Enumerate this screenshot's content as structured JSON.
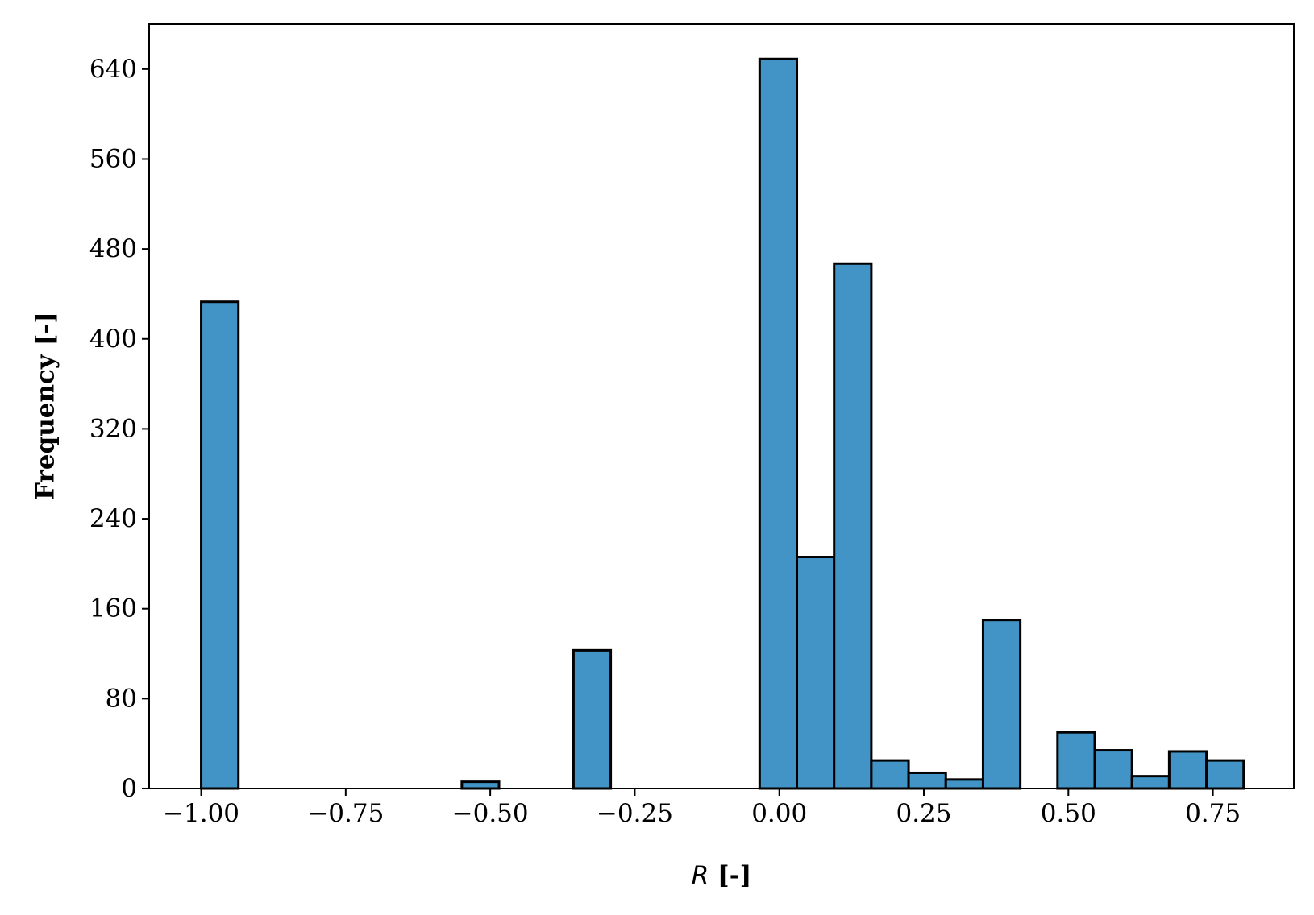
{
  "chart_data": {
    "type": "bar",
    "title": "",
    "xlabel_var": "R",
    "xlabel_unit": " [-]",
    "ylabel": "Frequency [-]",
    "bar_color": "#4194c5",
    "edge_color": "#000000",
    "xlim": [
      -1.09,
      0.89
    ],
    "ylim": [
      0,
      680
    ],
    "grid": false,
    "x_ticks": [
      -1.0,
      -0.75,
      -0.5,
      -0.25,
      0.0,
      0.25,
      0.5,
      0.75
    ],
    "x_tick_labels": [
      "−1.00",
      "−0.75",
      "−0.50",
      "−0.25",
      "0.00",
      "0.25",
      "0.50",
      "0.75"
    ],
    "y_ticks": [
      0,
      80,
      160,
      240,
      320,
      400,
      480,
      560,
      640
    ],
    "y_tick_labels": [
      "0",
      "80",
      "160",
      "240",
      "320",
      "400",
      "480",
      "560",
      "640"
    ],
    "bins": [
      {
        "x0": -1.0,
        "x1": -0.9356,
        "count": 433
      },
      {
        "x0": -0.9356,
        "x1": -0.8712,
        "count": 0
      },
      {
        "x0": -0.8712,
        "x1": -0.8068,
        "count": 0
      },
      {
        "x0": -0.8068,
        "x1": -0.7424,
        "count": 0
      },
      {
        "x0": -0.7424,
        "x1": -0.678,
        "count": 0
      },
      {
        "x0": -0.678,
        "x1": -0.6136,
        "count": 0
      },
      {
        "x0": -0.6136,
        "x1": -0.5492,
        "count": 0
      },
      {
        "x0": -0.5492,
        "x1": -0.4848,
        "count": 6
      },
      {
        "x0": -0.4848,
        "x1": -0.4204,
        "count": 0
      },
      {
        "x0": -0.4204,
        "x1": -0.356,
        "count": 0
      },
      {
        "x0": -0.356,
        "x1": -0.2916,
        "count": 123
      },
      {
        "x0": -0.2916,
        "x1": -0.2272,
        "count": 0
      },
      {
        "x0": -0.2272,
        "x1": -0.1628,
        "count": 0
      },
      {
        "x0": -0.1628,
        "x1": -0.0984,
        "count": 0
      },
      {
        "x0": -0.0984,
        "x1": -0.034,
        "count": 0
      },
      {
        "x0": -0.034,
        "x1": 0.0304,
        "count": 649
      },
      {
        "x0": 0.0304,
        "x1": 0.0948,
        "count": 206
      },
      {
        "x0": 0.0948,
        "x1": 0.1592,
        "count": 467
      },
      {
        "x0": 0.1592,
        "x1": 0.2236,
        "count": 25
      },
      {
        "x0": 0.2236,
        "x1": 0.288,
        "count": 14
      },
      {
        "x0": 0.288,
        "x1": 0.3524,
        "count": 8
      },
      {
        "x0": 0.3524,
        "x1": 0.4168,
        "count": 150
      },
      {
        "x0": 0.4168,
        "x1": 0.4812,
        "count": 0
      },
      {
        "x0": 0.4812,
        "x1": 0.5456,
        "count": 50
      },
      {
        "x0": 0.5456,
        "x1": 0.61,
        "count": 34
      },
      {
        "x0": 0.61,
        "x1": 0.6744,
        "count": 11
      },
      {
        "x0": 0.6744,
        "x1": 0.7388,
        "count": 33
      },
      {
        "x0": 0.7388,
        "x1": 0.8032,
        "count": 25
      }
    ]
  }
}
